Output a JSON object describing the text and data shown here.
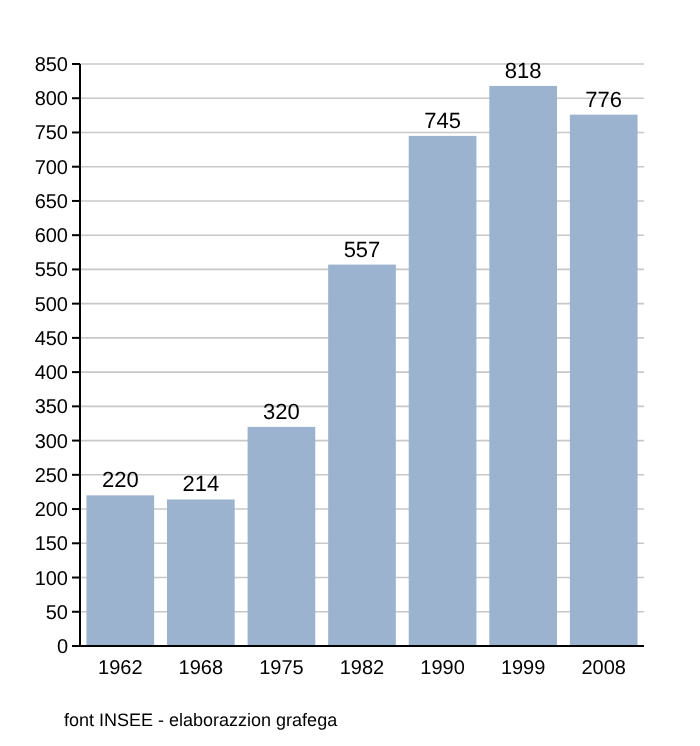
{
  "chart_data": {
    "type": "bar",
    "categories": [
      "1962",
      "1968",
      "1975",
      "1982",
      "1990",
      "1999",
      "2008"
    ],
    "values": [
      220,
      214,
      320,
      557,
      745,
      818,
      776
    ],
    "color": "#9bb3cf",
    "ylim": [
      0,
      850
    ],
    "yticks": [
      0,
      50,
      100,
      150,
      200,
      250,
      300,
      350,
      400,
      450,
      500,
      550,
      600,
      650,
      700,
      750,
      800,
      850
    ],
    "grid": "y",
    "data_labels": true,
    "annotations": [
      "font INSEE - elaborazzion grafega"
    ]
  }
}
